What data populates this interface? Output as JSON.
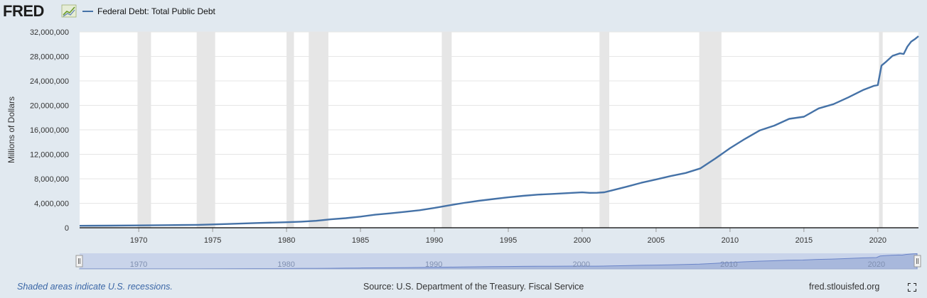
{
  "header": {
    "logo_text": "FRED",
    "logo_icon": "chart-line-icon",
    "legend_label": "Federal Debt: Total Public Debt"
  },
  "colors": {
    "background": "#e1e9f0",
    "plot_background": "#ffffff",
    "series": "#4572a7",
    "recession": "#e6e6e6",
    "navigator_fill": "#a8b8dc",
    "navigator_line": "#6a84c8",
    "logo": "#1d1d1d"
  },
  "chart_data": {
    "type": "line",
    "ylabel": "Millions of Dollars",
    "xlabel": "",
    "xlim": [
      1966.0,
      2022.75
    ],
    "ylim": [
      0,
      32000000
    ],
    "x_ticks": [
      1970,
      1975,
      1980,
      1985,
      1990,
      1995,
      2000,
      2005,
      2010,
      2015,
      2020
    ],
    "y_ticks": [
      0,
      4000000,
      8000000,
      12000000,
      16000000,
      20000000,
      24000000,
      28000000,
      32000000
    ],
    "y_tick_labels": [
      "0",
      "4,000,000",
      "8,000,000",
      "12,000,000",
      "16,000,000",
      "20,000,000",
      "24,000,000",
      "28,000,000",
      "32,000,000"
    ],
    "grid": "horizontal",
    "recessions": [
      [
        1969.92,
        1970.83
      ],
      [
        1973.92,
        1975.17
      ],
      [
        1980.0,
        1980.5
      ],
      [
        1981.5,
        1982.83
      ],
      [
        1990.5,
        1991.17
      ],
      [
        2001.17,
        2001.83
      ],
      [
        2007.92,
        2009.42
      ],
      [
        2020.08,
        2020.33
      ]
    ],
    "series": [
      {
        "name": "Federal Debt: Total Public Debt",
        "x": [
          1966,
          1968,
          1970,
          1972,
          1974,
          1976,
          1978,
          1980,
          1981,
          1982,
          1983,
          1984,
          1985,
          1986,
          1987,
          1988,
          1989,
          1990,
          1991,
          1992,
          1993,
          1994,
          1995,
          1996,
          1997,
          1998,
          1999,
          2000,
          2000.5,
          2001,
          2001.5,
          2002,
          2003,
          2004,
          2005,
          2006,
          2007,
          2008,
          2008.5,
          2009,
          2010,
          2011,
          2012,
          2013,
          2014,
          2015,
          2016,
          2017,
          2018,
          2019,
          2019.75,
          2020.0,
          2020.25,
          2020.5,
          2021.0,
          2021.5,
          2021.75,
          2022.0,
          2022.25,
          2022.5,
          2022.75
        ],
        "values": [
          320000,
          350000,
          380000,
          430000,
          480000,
          620000,
          780000,
          910000,
          1000000,
          1140000,
          1380000,
          1570000,
          1820000,
          2130000,
          2350000,
          2600000,
          2860000,
          3230000,
          3660000,
          4060000,
          4410000,
          4690000,
          4970000,
          5220000,
          5410000,
          5530000,
          5660000,
          5780000,
          5700000,
          5720000,
          5800000,
          6100000,
          6700000,
          7350000,
          7900000,
          8450000,
          8950000,
          9700000,
          10500000,
          11300000,
          13000000,
          14500000,
          15900000,
          16700000,
          17800000,
          18150000,
          19500000,
          20200000,
          21300000,
          22500000,
          23200000,
          23300000,
          26500000,
          27000000,
          28100000,
          28500000,
          28400000,
          29600000,
          30400000,
          30800000,
          31300000
        ]
      }
    ],
    "navigator": {
      "range": [
        1966,
        2022.75
      ],
      "labels": [
        1970,
        1980,
        1990,
        2000,
        2010,
        2020
      ]
    }
  },
  "footer": {
    "recession_note": "Shaded areas indicate U.S. recessions.",
    "source": "Source: U.S. Department of the Treasury. Fiscal Service",
    "site": "fred.stlouisfed.org",
    "fullscreen_icon": "fullscreen-icon"
  }
}
